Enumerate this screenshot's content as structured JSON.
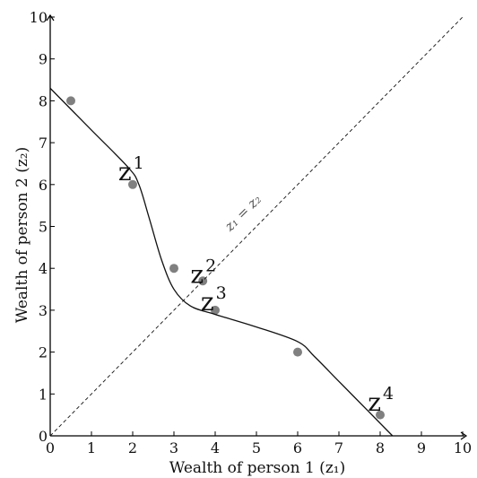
{
  "chart_data": {
    "type": "scatter",
    "xlabel": "Wealth of person 1 (z₁)",
    "ylabel": "Wealth of person 2 (z₂)",
    "xlim": [
      0,
      10
    ],
    "ylim": [
      0,
      10
    ],
    "xticks": [
      "0",
      "1",
      "2",
      "3",
      "4",
      "5",
      "6",
      "7",
      "8",
      "9",
      "10"
    ],
    "yticks": [
      "0",
      "1",
      "2",
      "3",
      "4",
      "5",
      "6",
      "7",
      "8",
      "9",
      "10"
    ],
    "grid": false,
    "series": [
      {
        "type": "scatter",
        "color": "#808080",
        "points": [
          {
            "x": 0.5,
            "y": 8.0
          },
          {
            "x": 2.0,
            "y": 6.0
          },
          {
            "x": 3.0,
            "y": 4.0
          },
          {
            "x": 3.7,
            "y": 3.7
          },
          {
            "x": 4.0,
            "y": 3.0
          },
          {
            "x": 6.0,
            "y": 2.0
          },
          {
            "x": 8.0,
            "y": 0.5
          }
        ]
      },
      {
        "type": "line",
        "color": "#111111",
        "points": [
          {
            "x": 0.0,
            "y": 8.3
          },
          {
            "x": 1.0,
            "y": 7.3
          },
          {
            "x": 1.9,
            "y": 6.4
          },
          {
            "x": 2.15,
            "y": 6.0
          },
          {
            "x": 2.4,
            "y": 5.2
          },
          {
            "x": 2.7,
            "y": 4.2
          },
          {
            "x": 3.0,
            "y": 3.5
          },
          {
            "x": 3.4,
            "y": 3.1
          },
          {
            "x": 4.0,
            "y": 2.9
          },
          {
            "x": 5.0,
            "y": 2.6
          },
          {
            "x": 6.0,
            "y": 2.25
          },
          {
            "x": 6.4,
            "y": 1.9
          },
          {
            "x": 7.0,
            "y": 1.3
          },
          {
            "x": 7.7,
            "y": 0.6
          },
          {
            "x": 8.3,
            "y": 0.0
          }
        ]
      },
      {
        "type": "line",
        "style": "dashed",
        "color": "#111111",
        "points": [
          {
            "x": 0,
            "y": 0
          },
          {
            "x": 10,
            "y": 10
          }
        ]
      }
    ],
    "annotations": [
      {
        "text": "z",
        "sup": "1",
        "x": 1.65,
        "y": 6.1
      },
      {
        "text": "z",
        "sup": "2",
        "x": 3.4,
        "y": 3.65
      },
      {
        "text": "z",
        "sup": "3",
        "x": 3.65,
        "y": 3.0
      },
      {
        "text": "z",
        "sup": "4",
        "x": 7.7,
        "y": 0.6
      }
    ],
    "diagonal_label": "z₁ = z₂"
  }
}
